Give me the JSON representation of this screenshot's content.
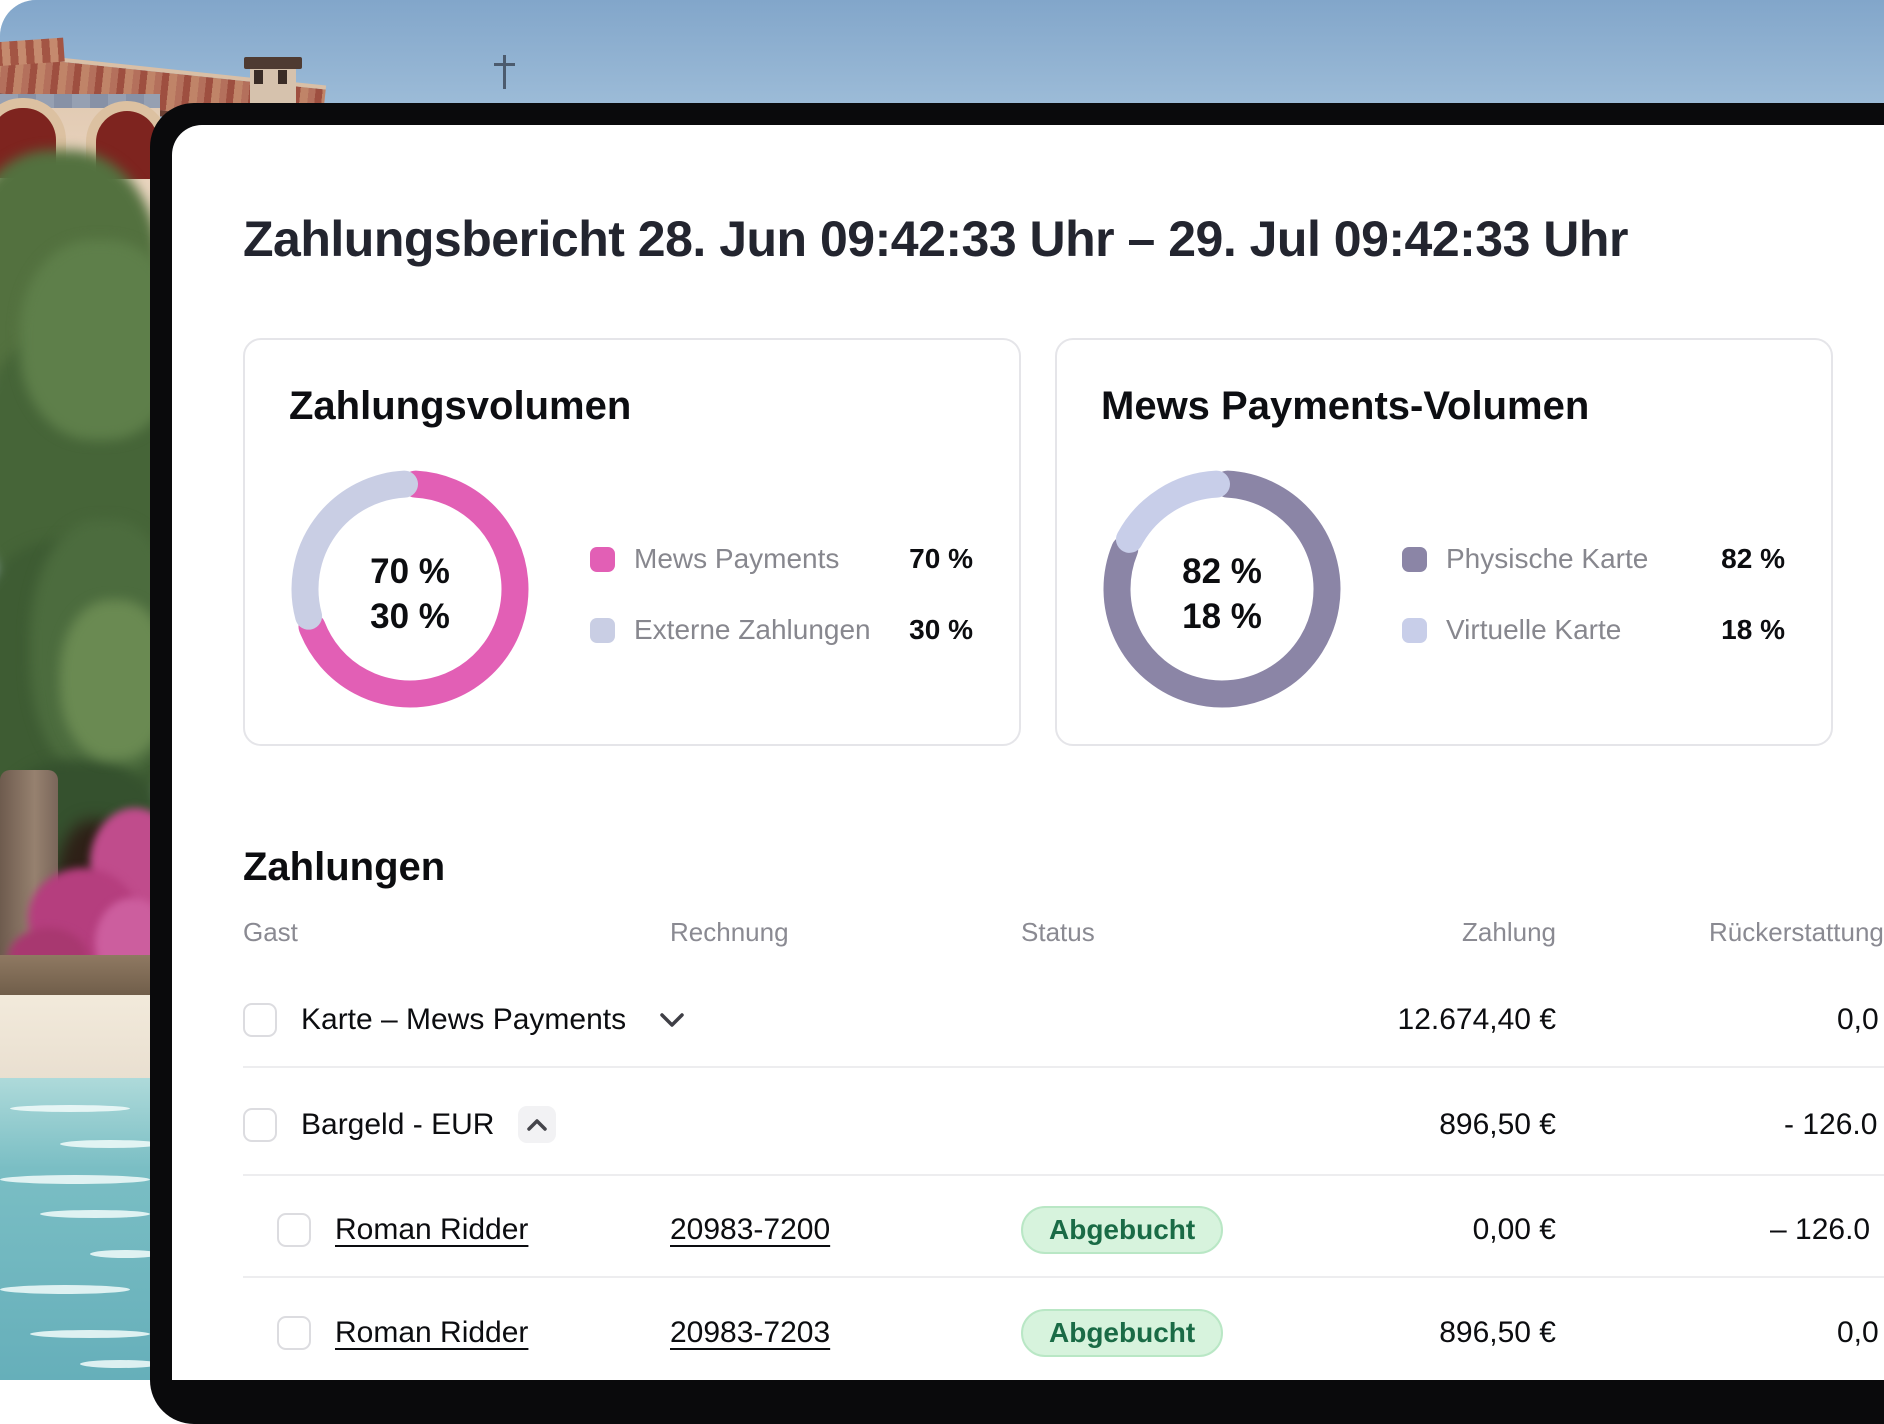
{
  "report": {
    "title": "Zahlungsbericht 28. Jun 09:42:33 Uhr – 29. Jul 09:42:33 Uhr"
  },
  "cards": [
    {
      "title": "Zahlungsvolumen",
      "center_line1": "70 %",
      "center_line2": "30 %",
      "legend": [
        {
          "label": "Mews Payments",
          "value": "70 %"
        },
        {
          "label": "Externe Zahlungen",
          "value": "30 %"
        }
      ],
      "chart": {
        "type": "donut",
        "values": [
          70,
          30
        ],
        "colors": [
          "#E25FB5",
          "#C9CEE4"
        ]
      }
    },
    {
      "title": "Mews Payments-Volumen",
      "center_line1": "82 %",
      "center_line2": "18 %",
      "legend": [
        {
          "label": "Physische Karte",
          "value": "82 %"
        },
        {
          "label": "Virtuelle Karte",
          "value": "18 %"
        }
      ],
      "chart": {
        "type": "donut",
        "values": [
          82,
          18
        ],
        "colors": [
          "#8B85A6",
          "#C8CEE9"
        ]
      }
    }
  ],
  "payments": {
    "heading": "Zahlungen",
    "columns": {
      "gast": "Gast",
      "rechnung": "Rechnung",
      "status": "Status",
      "zahlung": "Zahlung",
      "rueckerstattung": "Rückerstattung"
    },
    "group_rows": [
      {
        "label": "Karte – Mews Payments",
        "zahlung": "12.674,40 €",
        "rueckerstattung": "0,0"
      },
      {
        "label": "Bargeld - EUR",
        "zahlung": "896,50 €",
        "rueckerstattung": "- 126.0"
      }
    ],
    "detail_rows": [
      {
        "gast": "Roman Ridder",
        "rechnung": "20983-7200",
        "status": "Abgebucht",
        "zahlung": "0,00 €",
        "rueckerstattung": "– 126.0"
      },
      {
        "gast": "Roman Ridder",
        "rechnung": "20983-7203",
        "status": "Abgebucht",
        "zahlung": "896,50 €",
        "rueckerstattung": "0,0"
      }
    ],
    "status_badge": {
      "bg": "#D7F3DD",
      "border": "#B9E7C5",
      "text_color": "#1A6B46"
    }
  }
}
